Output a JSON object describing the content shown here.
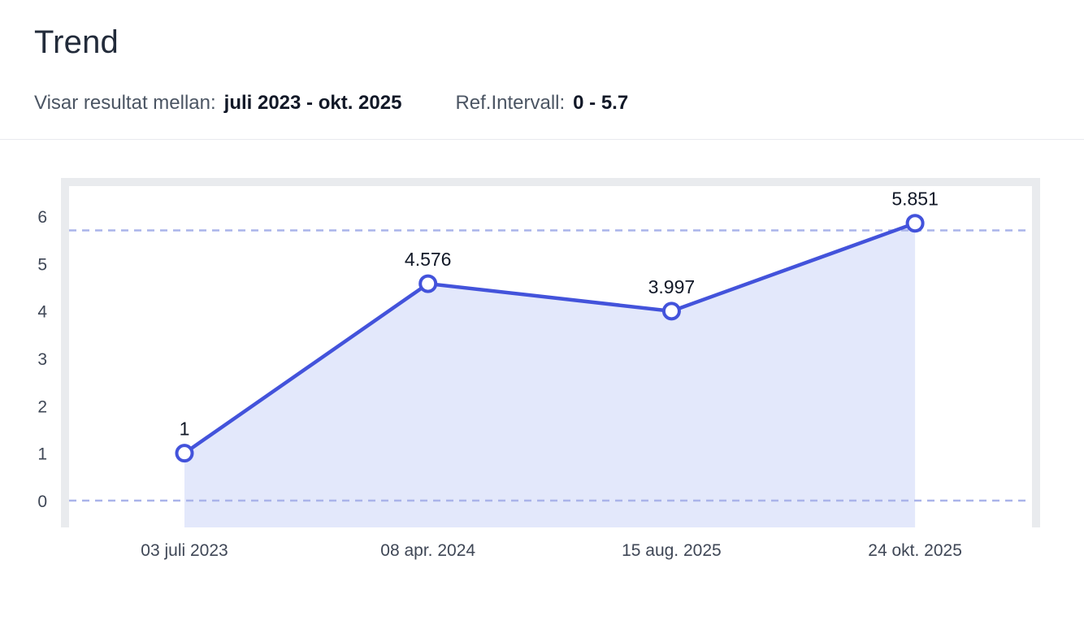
{
  "header": {
    "title": "Trend",
    "range_label": "Visar resultat mellan:",
    "range_value": "juli 2023 - okt. 2025",
    "ref_label": "Ref.Intervall:",
    "ref_value": "0 - 5.7"
  },
  "chart_data": {
    "type": "area",
    "title": "Trend",
    "categories": [
      "03 juli 2023",
      "08 apr. 2024",
      "15 aug. 2025",
      "24 okt. 2025"
    ],
    "values": [
      1,
      4.576,
      3.997,
      5.851
    ],
    "point_labels": [
      "1",
      "4.576",
      "3.997",
      "5.851"
    ],
    "xlabel": "",
    "ylabel": "",
    "ylim": [
      0,
      6
    ],
    "yticks": [
      0,
      1,
      2,
      3,
      4,
      5,
      6
    ],
    "reference_interval": [
      0,
      5.7
    ],
    "grid": false,
    "legend": "none",
    "colors": {
      "line": "#4353db",
      "area_fill": "#e3e8fb",
      "marker_fill": "#ffffff",
      "reference_line": "#aab4ea",
      "axis_text": "#3f4756",
      "point_label_text": "#111827",
      "plot_frame": "#e9ebee"
    }
  }
}
